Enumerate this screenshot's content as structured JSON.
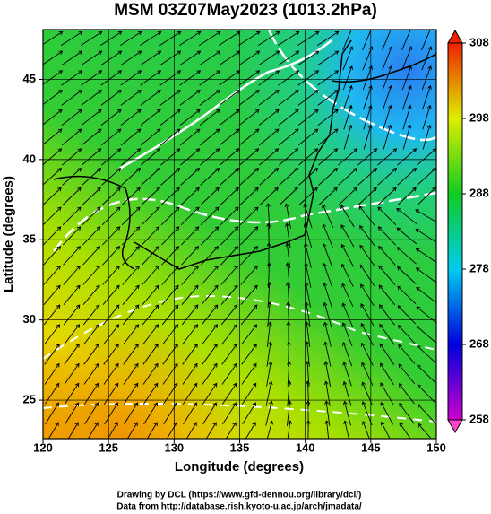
{
  "chart_data": {
    "type": "contour",
    "title": "MSM 03Z07May2023 (1013.2hPa)",
    "x_label": "Longitude (degrees)",
    "y_label": "Latitude  (degrees)",
    "xlim": [
      120,
      150
    ],
    "xticks": [
      120,
      125,
      130,
      135,
      140,
      145,
      150
    ],
    "ylim": [
      22.6,
      48.1
    ],
    "yticks": [
      25,
      30,
      35,
      40,
      45
    ],
    "grid": true,
    "colorbar": {
      "lim": [
        258,
        308
      ],
      "ticks": [
        258,
        268,
        278,
        288,
        298,
        308
      ],
      "colors": [
        "#cc00cc",
        "#0000dd",
        "#00ccee",
        "#11cc22",
        "#ddee00",
        "#ee2200"
      ]
    },
    "footer": [
      "Drawing by DCL (https://www.gfd-dennou.org/library/dcl/)",
      "Data from http://database.rish.kyoto-u.ac.jp/arch/jmadata/"
    ]
  }
}
